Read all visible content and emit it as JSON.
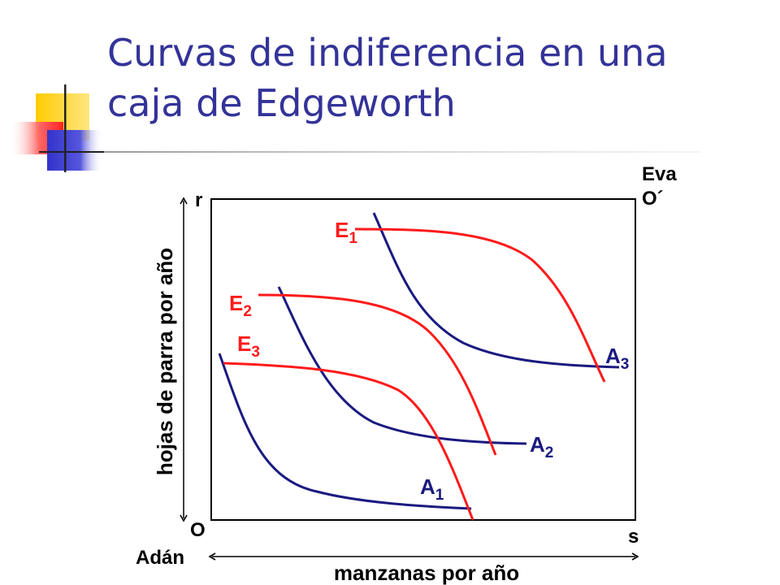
{
  "slide": {
    "title_line1": "Curvas de indiferencia en una",
    "title_line2": "caja de Edgeworth"
  },
  "diagram": {
    "origin_a_label": "O",
    "origin_a_name": "Adán",
    "origin_e_name": "Eva",
    "origin_e_label": "O´",
    "corner_tl_label": "r",
    "corner_br_label": "s",
    "x_axis_label": "manzanas por año",
    "y_axis_label": "hojas de parra por año",
    "curves": [
      {
        "letter": "E",
        "sub": "1"
      },
      {
        "letter": "E",
        "sub": "2"
      },
      {
        "letter": "E",
        "sub": "3"
      },
      {
        "letter": "A",
        "sub": "1"
      },
      {
        "letter": "A",
        "sub": "2"
      },
      {
        "letter": "A",
        "sub": "3"
      }
    ],
    "colors": {
      "adam": "#1a1a80",
      "eve": "#ff1a1a",
      "title": "#333399"
    }
  }
}
